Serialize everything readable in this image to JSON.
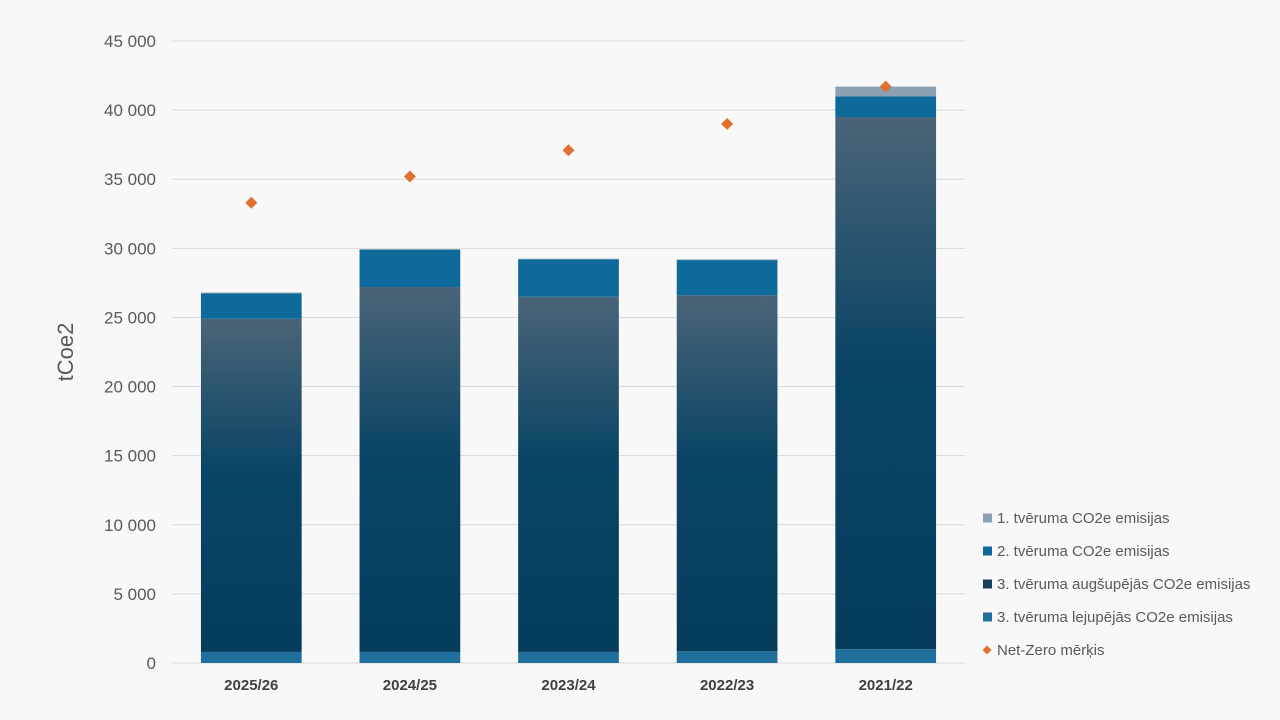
{
  "chart_data": {
    "type": "bar",
    "stacked": true,
    "ylabel": "tCoe2",
    "xlabel": "",
    "ylim": [
      0,
      45000
    ],
    "y_ticks": [
      0,
      5000,
      10000,
      15000,
      20000,
      25000,
      30000,
      35000,
      40000,
      45000
    ],
    "y_tick_labels": [
      "0",
      "5 000",
      "10 000",
      "15 000",
      "20 000",
      "25 000",
      "30 000",
      "35 000",
      "40 000",
      "45 000"
    ],
    "grid": true,
    "legend_position": "right",
    "categories": [
      "2025/26",
      "2024/25",
      "2023/24",
      "2022/23",
      "2021/22"
    ],
    "series": [
      {
        "name": "3. tvēruma lejupējās CO2e emisijas",
        "values": [
          800,
          800,
          800,
          850,
          1000
        ],
        "color": "#1f6e9c"
      },
      {
        "name": "3. tvēruma augšupējās CO2e emisijas",
        "values": [
          24100,
          26400,
          25700,
          25750,
          38500
        ],
        "color": "#0c4a6e"
      },
      {
        "name": "2. tvēruma CO2e emisijas",
        "values": [
          1850,
          2700,
          2700,
          2550,
          1500
        ],
        "color": "#0d6a9a"
      },
      {
        "name": "1. tvēruma CO2e emisijas",
        "values": [
          50,
          50,
          50,
          50,
          700
        ],
        "color": "#8aa0b3"
      }
    ],
    "markers": {
      "name": "Net-Zero mērķis",
      "values": [
        33300,
        35200,
        37100,
        39000,
        41700
      ],
      "color": "#e07030"
    },
    "legend_order": [
      "1. tvēruma CO2e emisijas",
      "2. tvēruma CO2e emisijas",
      "3. tvēruma augšupējās CO2e emisijas",
      "3. tvēruma lejupējās CO2e emisijas",
      "Net-Zero mērķis"
    ]
  }
}
